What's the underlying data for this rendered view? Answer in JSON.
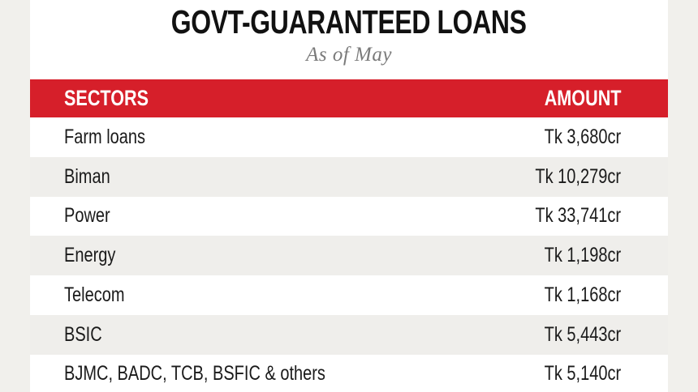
{
  "header": {
    "title": "GOVT-GUARANTEED LOANS",
    "subtitle": "As of May"
  },
  "table": {
    "columns": [
      "SECTORS",
      "AMOUNT"
    ],
    "rows": [
      [
        "Farm loans",
        "Tk 3,680cr"
      ],
      [
        "Biman",
        "Tk 10,279cr"
      ],
      [
        "Power",
        "Tk 33,741cr"
      ],
      [
        "Energy",
        "Tk 1,198cr"
      ],
      [
        "Telecom",
        "Tk 1,168cr"
      ],
      [
        "BSIC",
        "Tk 5,443cr"
      ],
      [
        "BJMC, BADC, TCB, BSFIC & others",
        "Tk 5,140cr"
      ]
    ]
  }
}
